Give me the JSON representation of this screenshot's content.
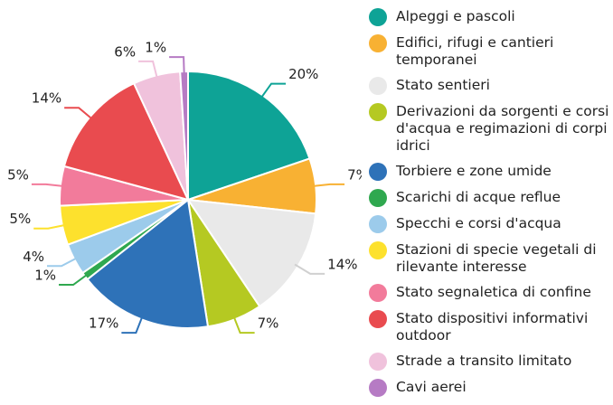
{
  "chart_data": {
    "type": "pie",
    "categories": [
      "Alpeggi e pascoli",
      "Edifici, rifugi e cantieri temporanei",
      "Stato sentieri",
      "Derivazioni da sorgenti e corsi d'acqua e regimazioni di corpi idrici",
      "Torbiere e zone umide",
      "Scarichi di acque reflue",
      "Specchi e corsi d'acqua",
      "Stazioni di specie vegetali di rilevante interesse",
      "Stato segnaletica di confine",
      "Stato dispositivi informativi outdoor",
      "Strade a transito limitato",
      "Cavi aerei"
    ],
    "values": [
      20,
      7,
      14,
      7,
      17,
      1,
      4,
      5,
      5,
      14,
      6,
      1
    ],
    "value_labels": [
      "20%",
      "7%",
      "14%",
      "7%",
      "17%",
      "1%",
      "4%",
      "5%",
      "5%",
      "14%",
      "6%",
      "1%"
    ],
    "colors": [
      "#0ea396",
      "#f8b133",
      "#e9e9e9",
      "#b5c922",
      "#2e72b8",
      "#2fa84f",
      "#9ccbeb",
      "#fde12d",
      "#f27b9b",
      "#e94b4f",
      "#f0c2dc",
      "#b67bc4"
    ],
    "legend": "right"
  }
}
